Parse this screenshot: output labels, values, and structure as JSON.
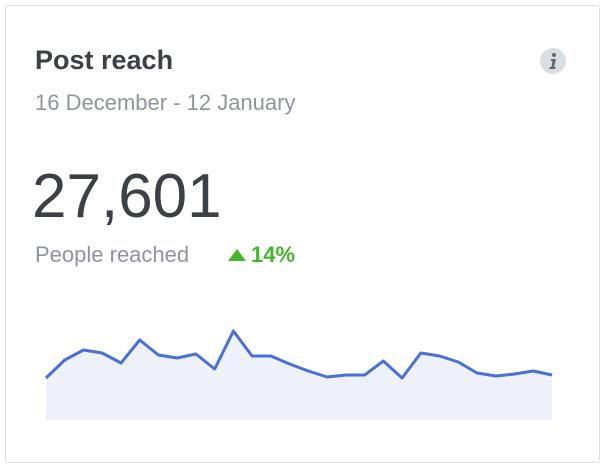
{
  "card": {
    "title": "Post reach",
    "date_range": "16 December - 12 January",
    "metric": {
      "value": "27,601",
      "label": "People reached",
      "change": "14%"
    }
  },
  "chart_data": {
    "type": "area",
    "color": "#4a6fd6",
    "fill": "#eef0fa",
    "values": [
      42,
      60,
      70,
      67,
      57,
      80,
      65,
      62,
      66,
      51,
      89,
      64,
      64,
      56,
      49,
      43,
      45,
      45,
      59,
      42,
      67,
      64,
      58,
      47,
      44,
      46,
      49,
      45
    ]
  }
}
